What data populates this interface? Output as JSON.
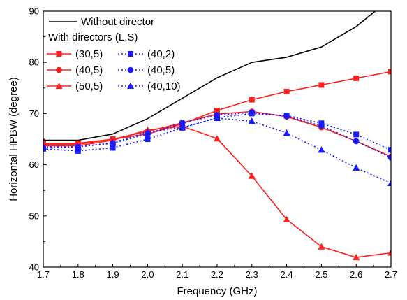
{
  "chart_data": {
    "type": "line",
    "xlabel": "Frequency (GHz)",
    "ylabel": "Horizontal HPBW (degree)",
    "xlim": [
      1.7,
      2.7
    ],
    "ylim": [
      40,
      90
    ],
    "x_ticks": [
      "1.7",
      "1.8",
      "1.9",
      "2.0",
      "2.1",
      "2.2",
      "2.3",
      "2.4",
      "2.5",
      "2.6",
      "2.7"
    ],
    "y_ticks": [
      "40",
      "50",
      "60",
      "70",
      "80",
      "90"
    ],
    "grid": false,
    "legend_position": "top-left",
    "x": [
      1.7,
      1.8,
      1.9,
      2.0,
      2.1,
      2.2,
      2.3,
      2.4,
      2.5,
      2.6,
      2.7
    ],
    "legend": {
      "heading": "With directors (L,S)"
    },
    "series": [
      {
        "name": "Without director",
        "color": "#000000",
        "dash": "solid",
        "marker": "none",
        "values": [
          64.8,
          64.8,
          66.0,
          69.0,
          73.0,
          77.0,
          80.0,
          81.0,
          83.0,
          87.0,
          92.5
        ]
      },
      {
        "name": "(30,5)",
        "color": "#ff2020",
        "dash": "solid",
        "marker": "square",
        "values": [
          64.2,
          64.2,
          65.0,
          66.0,
          68.0,
          70.6,
          72.7,
          74.3,
          75.6,
          76.9,
          78.2
        ]
      },
      {
        "name": "(40,5)",
        "color": "#ff2020",
        "dash": "solid",
        "marker": "circle",
        "values": [
          64.0,
          64.0,
          65.0,
          66.5,
          68.2,
          69.9,
          70.4,
          69.4,
          67.3,
          64.6,
          61.6
        ]
      },
      {
        "name": "(50,5)",
        "color": "#ff2020",
        "dash": "solid",
        "marker": "triangle",
        "values": [
          63.7,
          63.7,
          64.8,
          66.8,
          67.5,
          65.1,
          57.8,
          49.3,
          44.0,
          41.9,
          42.8
        ]
      },
      {
        "name": "(40,2)",
        "color": "#1a1aff",
        "dash": "dotted",
        "marker": "square",
        "values": [
          63.1,
          62.7,
          63.3,
          65.0,
          67.2,
          69.2,
          70.0,
          69.6,
          68.1,
          65.9,
          62.9
        ]
      },
      {
        "name": "(40,5)",
        "color": "#1a1aff",
        "dash": "dotted",
        "marker": "circle",
        "values": [
          63.3,
          63.5,
          64.2,
          66.0,
          68.2,
          69.7,
          70.2,
          69.5,
          67.6,
          64.6,
          61.4
        ]
      },
      {
        "name": "(40,10)",
        "color": "#1a1aff",
        "dash": "dotted",
        "marker": "triangle",
        "values": [
          63.5,
          63.5,
          64.3,
          66.4,
          67.3,
          69.1,
          68.5,
          66.2,
          62.9,
          59.4,
          56.4
        ]
      }
    ]
  }
}
